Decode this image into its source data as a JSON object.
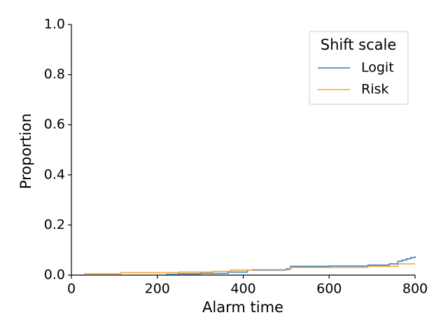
{
  "chart_data": {
    "type": "line",
    "drawstyle": "steps-post",
    "xlabel": "Alarm time",
    "ylabel": "Proportion",
    "xlim": [
      0,
      800
    ],
    "ylim": [
      0,
      1
    ],
    "xticks": [
      0,
      200,
      400,
      600,
      800
    ],
    "yticks": [
      {
        "value": 0,
        "label": "0.0"
      },
      0.2,
      0.4,
      0.6,
      0.8,
      {
        "value": 1,
        "label": "1.0"
      }
    ],
    "grid": false,
    "legend": "upper right",
    "legend_title": "Shift scale",
    "series": [
      {
        "name": "Logit",
        "color": "#3a7fb5",
        "x": [
          220,
          250,
          300,
          365,
          410,
          500,
          510,
          600,
          690,
          740,
          760,
          770,
          780,
          790,
          800
        ],
        "values": [
          0.003,
          0.005,
          0.007,
          0.012,
          0.02,
          0.025,
          0.035,
          0.036,
          0.04,
          0.045,
          0.055,
          0.06,
          0.065,
          0.07,
          0.075
        ]
      },
      {
        "name": "Risk",
        "color": "#f2a33a",
        "x": [
          30,
          115,
          250,
          330,
          370,
          420,
          510,
          690,
          760,
          800
        ],
        "values": [
          0.005,
          0.01,
          0.012,
          0.015,
          0.02,
          0.022,
          0.03,
          0.035,
          0.045,
          0.045
        ]
      }
    ]
  }
}
